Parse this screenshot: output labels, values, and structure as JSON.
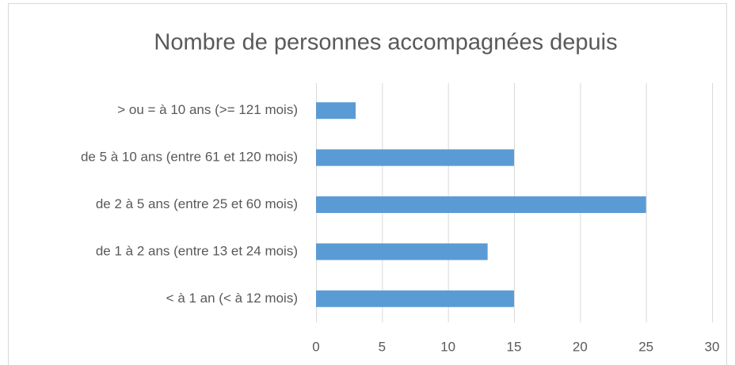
{
  "chart_data": {
    "type": "bar",
    "orientation": "horizontal",
    "title": "Nombre de personnes accompagnées depuis",
    "categories": [
      "> ou = à 10 ans (>= 121 mois)",
      "de 5 à 10 ans (entre 61 et 120 mois)",
      "de 2 à 5 ans (entre 25 et 60 mois)",
      "de 1 à 2 ans (entre 13 et 24 mois)",
      "< à 1 an (< à 12 mois)"
    ],
    "values": [
      3,
      15,
      25,
      13,
      15
    ],
    "color": "#5b9bd5",
    "xlim": [
      0,
      30
    ],
    "xticks": [
      0,
      5,
      10,
      15,
      20,
      25,
      30
    ],
    "grid": true
  }
}
